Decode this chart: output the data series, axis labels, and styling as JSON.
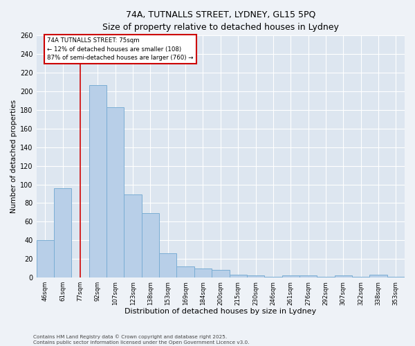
{
  "title_line1": "74A, TUTNALLS STREET, LYDNEY, GL15 5PQ",
  "title_line2": "Size of property relative to detached houses in Lydney",
  "xlabel": "Distribution of detached houses by size in Lydney",
  "ylabel": "Number of detached properties",
  "categories": [
    "46sqm",
    "61sqm",
    "77sqm",
    "92sqm",
    "107sqm",
    "123sqm",
    "138sqm",
    "153sqm",
    "169sqm",
    "184sqm",
    "200sqm",
    "215sqm",
    "230sqm",
    "246sqm",
    "261sqm",
    "276sqm",
    "292sqm",
    "307sqm",
    "322sqm",
    "338sqm",
    "353sqm"
  ],
  "values": [
    40,
    96,
    0,
    207,
    183,
    89,
    69,
    26,
    12,
    10,
    8,
    3,
    2,
    1,
    2,
    2,
    1,
    2,
    1,
    3,
    1
  ],
  "bar_color": "#b8cfe8",
  "bar_edge_color": "#7aadd4",
  "vline_x_index": 2,
  "annotation_text_line1": "74A TUTNALLS STREET: 75sqm",
  "annotation_text_line2": "← 12% of detached houses are smaller (108)",
  "annotation_text_line3": "87% of semi-detached houses are larger (760) →",
  "annotation_box_facecolor": "#ffffff",
  "annotation_box_edgecolor": "#cc0000",
  "vline_color": "#cc0000",
  "ylim_max": 260,
  "ytick_step": 20,
  "bg_color": "#eef2f7",
  "plot_bg_color": "#dde6f0",
  "grid_color": "#ffffff",
  "footer_line1": "Contains HM Land Registry data © Crown copyright and database right 2025.",
  "footer_line2": "Contains public sector information licensed under the Open Government Licence v3.0."
}
